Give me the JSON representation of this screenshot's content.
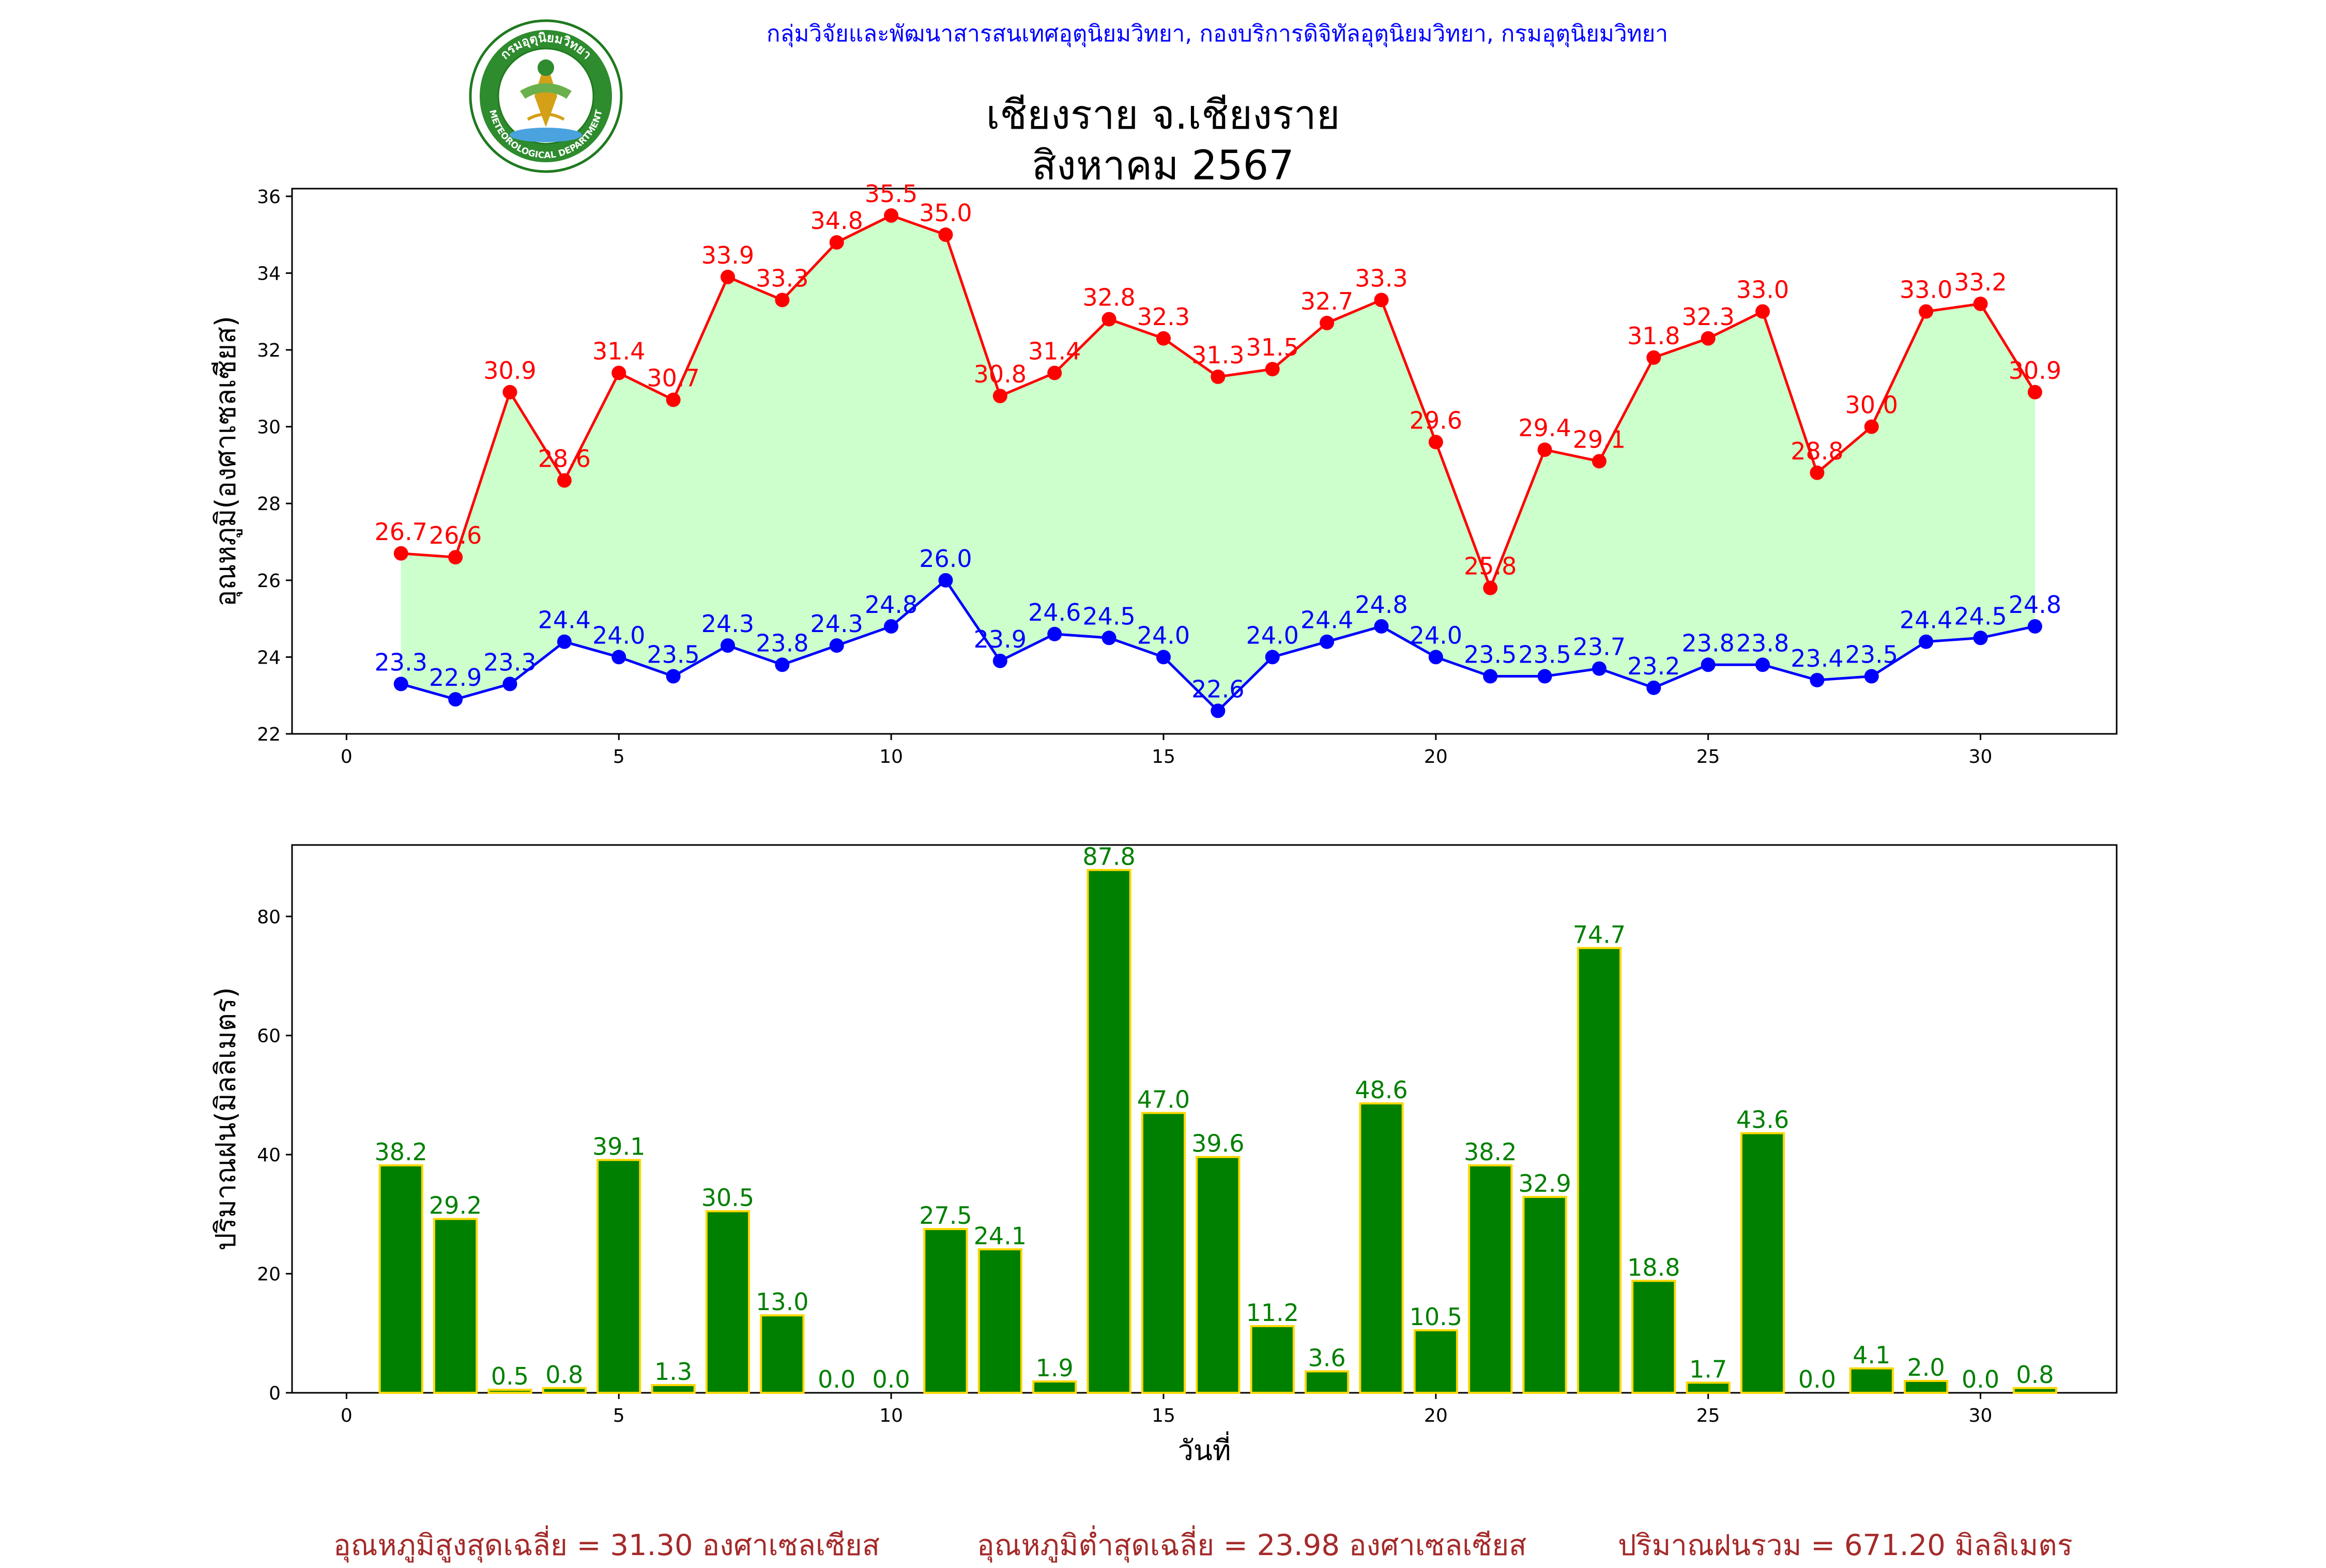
{
  "header": {
    "agency": "กลุ่มวิจัยและพัฒนาสารสนเทศอุตุนิยมวิทยา, กองบริการดิจิทัลอุตุนิยมวิทยา, กรมอุตุนิยมวิทยา",
    "station": "เชียงราย จ.เชียงราย",
    "period": "สิงหาคม 2567",
    "logo_top_text": "กรมอุตุนิยมวิทยา",
    "logo_bottom_text": "METEOROLOGICAL DEPARTMENT"
  },
  "colors": {
    "max_line": "#ff0000",
    "min_line": "#0000ff",
    "fill": "#ccffcc",
    "bar": "#008000",
    "bar_edge": "#ffd700",
    "footer": "#a52a2a",
    "agency": "#0000ff"
  },
  "footer": {
    "avg_max": "อุณหภูมิสูงสุดเฉลี่ย = 31.30 องศาเซลเซียส",
    "avg_min": "อุณหภูมิต่ำสุดเฉลี่ย = 23.98 องศาเซลเซียส",
    "rain_total": "ปริมาณฝนรวม = 671.20 มิลลิเมตร"
  },
  "chart_data": [
    {
      "type": "line",
      "ylabel": "อุณหภูมิ(องศาเซลเซียส)",
      "xlabel": "",
      "xlim": [
        -1,
        32.5
      ],
      "ylim": [
        22,
        36.2
      ],
      "xticks": [
        0,
        5,
        10,
        15,
        20,
        25,
        30
      ],
      "yticks": [
        22,
        24,
        26,
        28,
        30,
        32,
        34,
        36
      ],
      "x": [
        1,
        2,
        3,
        4,
        5,
        6,
        7,
        8,
        9,
        10,
        11,
        12,
        13,
        14,
        15,
        16,
        17,
        18,
        19,
        20,
        21,
        22,
        23,
        24,
        25,
        26,
        27,
        28,
        29,
        30,
        31
      ],
      "series": [
        {
          "values": [
            26.7,
            26.6,
            30.9,
            28.6,
            31.4,
            30.7,
            33.9,
            33.3,
            34.8,
            35.5,
            35.0,
            30.8,
            31.4,
            32.8,
            32.3,
            31.3,
            31.5,
            32.7,
            33.3,
            29.6,
            25.8,
            29.4,
            29.1,
            31.8,
            32.3,
            33.0,
            28.8,
            30.0,
            33.0,
            33.2,
            30.9
          ],
          "color": "#ff0000"
        },
        {
          "values": [
            23.3,
            22.9,
            23.3,
            24.4,
            24.0,
            23.5,
            24.3,
            23.8,
            24.3,
            24.8,
            26.0,
            23.9,
            24.6,
            24.5,
            24.0,
            22.6,
            24.0,
            24.4,
            24.8,
            24.0,
            23.5,
            23.5,
            23.7,
            23.2,
            23.8,
            23.8,
            23.4,
            23.5,
            24.4,
            24.5,
            24.8
          ],
          "color": "#0000ff"
        }
      ]
    },
    {
      "type": "bar",
      "ylabel": "ปริมาณฝน(มิลลิเมตร)",
      "xlabel": "วันที่",
      "xlim": [
        -1,
        32.5
      ],
      "ylim": [
        0,
        92
      ],
      "xticks": [
        0,
        5,
        10,
        15,
        20,
        25,
        30
      ],
      "yticks": [
        0,
        20,
        40,
        60,
        80
      ],
      "x": [
        1,
        2,
        3,
        4,
        5,
        6,
        7,
        8,
        9,
        10,
        11,
        12,
        13,
        14,
        15,
        16,
        17,
        18,
        19,
        20,
        21,
        22,
        23,
        24,
        25,
        26,
        27,
        28,
        29,
        30,
        31
      ],
      "values": [
        38.2,
        29.2,
        0.5,
        0.8,
        39.1,
        1.3,
        30.5,
        13.0,
        0.0,
        0.0,
        27.5,
        24.1,
        1.9,
        87.8,
        47.0,
        39.6,
        11.2,
        3.6,
        48.6,
        10.5,
        38.2,
        32.9,
        74.7,
        18.8,
        1.7,
        43.6,
        0.0,
        4.1,
        2.0,
        0.0,
        0.8
      ],
      "color": "#008000"
    }
  ]
}
